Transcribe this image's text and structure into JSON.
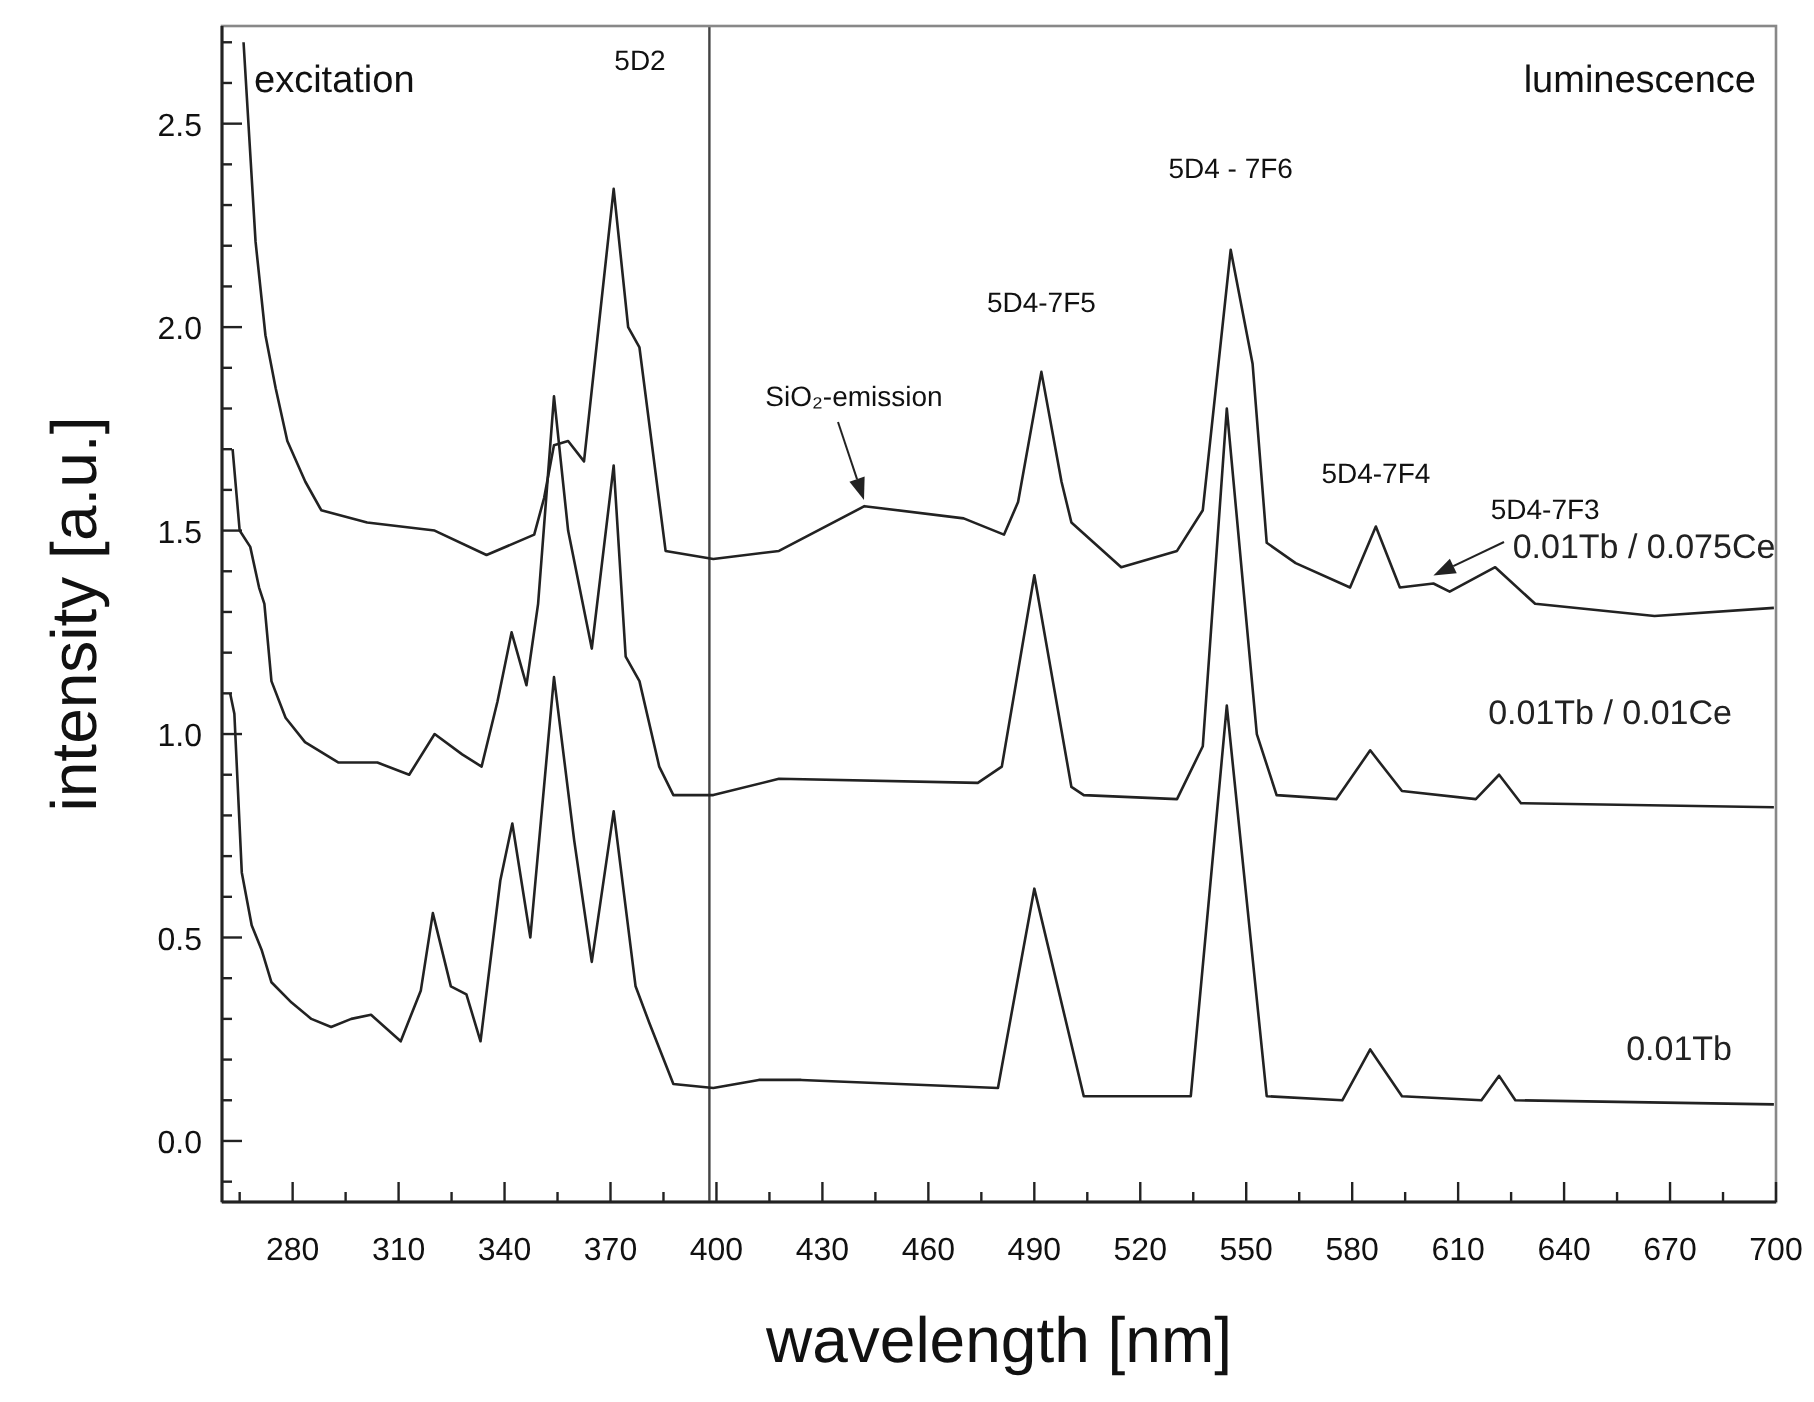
{
  "chart_data": {
    "type": "line",
    "xlabel": "wavelength [nm]",
    "ylabel": "intensity [a.u.]",
    "xlim": [
      260,
      700
    ],
    "ylim": [
      -0.15,
      2.74
    ],
    "xticks": [
      {
        "value": 265,
        "label": null
      },
      280,
      {
        "value": 295,
        "label": null
      },
      310,
      {
        "value": 325,
        "label": null
      },
      340,
      {
        "value": 355,
        "label": null
      },
      370,
      {
        "value": 385,
        "label": null
      },
      400,
      {
        "value": 415,
        "label": null
      },
      430,
      {
        "value": 445,
        "label": null
      },
      460,
      {
        "value": 475,
        "label": null
      },
      490,
      {
        "value": 505,
        "label": null
      },
      520,
      {
        "value": 535,
        "label": null
      },
      550,
      {
        "value": 565,
        "label": null
      },
      580,
      {
        "value": 595,
        "label": null
      },
      610,
      {
        "value": 625,
        "label": null
      },
      640,
      {
        "value": 655,
        "label": null
      },
      670,
      {
        "value": 685,
        "label": null
      },
      700
    ],
    "yticks": [
      {
        "value": -0.1,
        "label": null
      },
      {
        "value": 0,
        "label": "0.0"
      },
      {
        "value": 0.1,
        "label": null
      },
      {
        "value": 0.2,
        "label": null
      },
      {
        "value": 0.3,
        "label": null
      },
      {
        "value": 0.4,
        "label": null
      },
      0.5,
      {
        "value": 0.6,
        "label": null
      },
      {
        "value": 0.7,
        "label": null
      },
      {
        "value": 0.8,
        "label": null
      },
      {
        "value": 0.9,
        "label": null
      },
      {
        "value": 1,
        "label": "1.0"
      },
      {
        "value": 1.1,
        "label": null
      },
      {
        "value": 1.2,
        "label": null
      },
      {
        "value": 1.3,
        "label": null
      },
      {
        "value": 1.4,
        "label": null
      },
      1.5,
      {
        "value": 1.6,
        "label": null
      },
      {
        "value": 1.7,
        "label": null
      },
      {
        "value": 1.8,
        "label": null
      },
      {
        "value": 1.9,
        "label": null
      },
      {
        "value": 2,
        "label": "2.0"
      },
      {
        "value": 2.1,
        "label": null
      },
      {
        "value": 2.2,
        "label": null
      },
      {
        "value": 2.3,
        "label": null
      },
      {
        "value": 2.4,
        "label": null
      },
      2.5,
      {
        "value": 2.6,
        "label": null
      },
      {
        "value": 2.7,
        "label": null
      }
    ],
    "grid": false,
    "ref_lines": [
      {
        "axis": "x",
        "value": 398,
        "color": "#444444"
      }
    ],
    "annotations": [
      "excitation",
      "luminescence",
      "5D2",
      "SiO₂-emission",
      {
        "text": "5D4-7F5",
        "x": 492,
        "y": 1.89
      },
      {
        "text": "5D4 - 7F6",
        "x": 545.6,
        "y": 2.19
      },
      {
        "text": "5D4-7F4",
        "x": 586.7,
        "y": 1.51
      },
      {
        "text": "5D4-7F3",
        "x": 620.5,
        "y": 1.41
      }
    ],
    "series": [
      {
        "name": "0.01Tb / 0.075Ce",
        "color": "#222222",
        "x": [
          266.1,
          269.5,
          272.3,
          275.2,
          278.5,
          283.6,
          288.1,
          301.1,
          320.2,
          334.9,
          348.4,
          351.2,
          354,
          358,
          362.5,
          370.9,
          375,
          378.2,
          385.6,
          399.1,
          417.7,
          441.9,
          470,
          481.4,
          485.4,
          492,
          497.7,
          500.5,
          514.6,
          530.4,
          537.7,
          545.6,
          551.8,
          555.8,
          564,
          579.4,
          586.7,
          593.5,
          603,
          607.6,
          620.5,
          631.8,
          665.6,
          699.4
        ],
        "values": [
          2.7,
          2.21,
          1.98,
          1.85,
          1.72,
          1.62,
          1.55,
          1.52,
          1.5,
          1.44,
          1.49,
          1.58,
          1.71,
          1.72,
          1.67,
          2.34,
          2.0,
          1.95,
          1.45,
          1.43,
          1.45,
          1.56,
          1.53,
          1.49,
          1.57,
          1.89,
          1.62,
          1.52,
          1.41,
          1.45,
          1.55,
          2.19,
          1.91,
          1.47,
          1.42,
          1.36,
          1.51,
          1.36,
          1.37,
          1.35,
          1.41,
          1.32,
          1.29,
          1.31
        ]
      },
      {
        "name": "0.01Tb / 0.01Ce",
        "color": "#222222",
        "x": [
          263,
          265,
          268,
          270.5,
          272,
          274,
          278,
          283.5,
          293,
          304,
          313,
          320.2,
          328,
          333.5,
          338,
          342,
          346.2,
          349.5,
          354,
          358,
          364.7,
          370.9,
          374.3,
          378.2,
          383.8,
          387.8,
          399.1,
          417.7,
          474,
          480.8,
          490,
          500.5,
          504,
          530.4,
          537.7,
          544.5,
          553,
          558.6,
          575.5,
          585.1,
          594.1,
          615,
          621.6,
          627.8,
          699.4
        ],
        "values": [
          1.7,
          1.5,
          1.46,
          1.36,
          1.32,
          1.13,
          1.04,
          0.98,
          0.93,
          0.93,
          0.9,
          1.0,
          0.95,
          0.92,
          1.08,
          1.25,
          1.12,
          1.32,
          1.83,
          1.5,
          1.21,
          1.66,
          1.19,
          1.13,
          0.92,
          0.85,
          0.85,
          0.89,
          0.88,
          0.92,
          1.39,
          0.87,
          0.85,
          0.84,
          0.97,
          1.8,
          1.0,
          0.85,
          0.84,
          0.96,
          0.86,
          0.84,
          0.9,
          0.83,
          0.82
        ]
      },
      {
        "name": "0.01Tb",
        "color": "#222222",
        "x": [
          262.3,
          263.5,
          265.6,
          268.4,
          271.2,
          274,
          279.7,
          285.3,
          290.9,
          296.6,
          302.2,
          310.6,
          316.3,
          319.7,
          324.8,
          329.2,
          333.2,
          338.8,
          342.2,
          347.3,
          354,
          359.7,
          364.7,
          370.9,
          377.1,
          381,
          387.8,
          399.1,
          412,
          424,
          479.7,
          490,
          504,
          534.3,
          544.5,
          555.8,
          577.2,
          585.1,
          594.1,
          616.6,
          621.6,
          626.2,
          699.4
        ],
        "values": [
          1.1,
          1.05,
          0.66,
          0.53,
          0.47,
          0.39,
          0.34,
          0.3,
          0.28,
          0.3,
          0.31,
          0.245,
          0.37,
          0.56,
          0.38,
          0.36,
          0.245,
          0.64,
          0.78,
          0.5,
          1.14,
          0.74,
          0.44,
          0.81,
          0.38,
          0.29,
          0.14,
          0.13,
          0.15,
          0.15,
          0.13,
          0.62,
          0.11,
          0.11,
          1.07,
          0.11,
          0.1,
          0.225,
          0.11,
          0.1,
          0.16,
          0.1,
          0.09
        ]
      }
    ]
  }
}
